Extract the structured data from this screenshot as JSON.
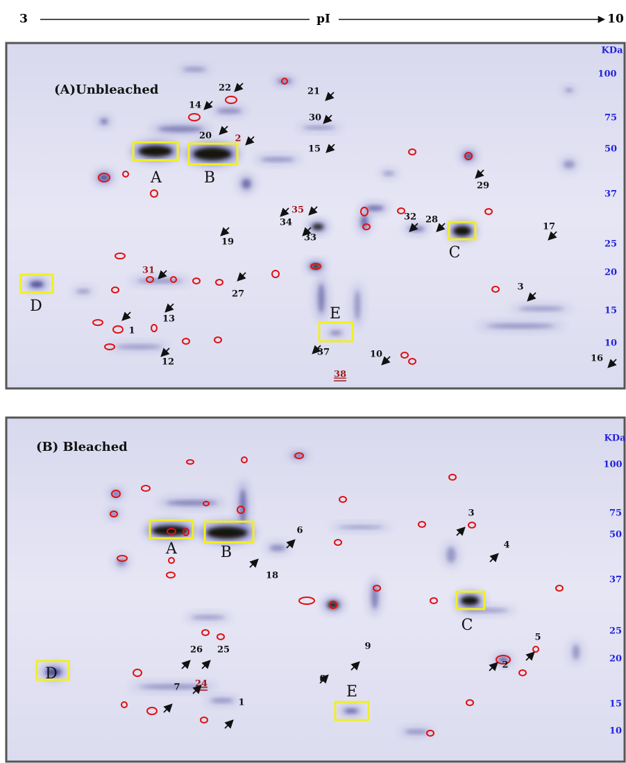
{
  "header": {
    "left": "3",
    "center": "pI",
    "right": "10"
  },
  "panels": [
    {
      "title": "(A)Unbleached",
      "mw_unit": "KDa",
      "mw_labels": [
        "100",
        "75",
        "50",
        "37",
        "25",
        "20",
        "15",
        "10"
      ],
      "box_labels": [
        "A",
        "B",
        "C",
        "D",
        "E"
      ],
      "spot_labels": [
        "22",
        "14",
        "21",
        "30",
        "20",
        "2",
        "15",
        "29",
        "35",
        "34",
        "32",
        "28",
        "17",
        "19",
        "33",
        "31",
        "27",
        "3",
        "13",
        "1",
        "12",
        "37",
        "10",
        "16",
        "38"
      ]
    },
    {
      "title": "(B) Bleached",
      "mw_unit": "KDa",
      "mw_labels": [
        "100",
        "75",
        "50",
        "37",
        "25",
        "20",
        "15",
        "10"
      ],
      "box_labels": [
        "A",
        "B",
        "C",
        "D",
        "E"
      ],
      "spot_labels": [
        "3",
        "6",
        "4",
        "18",
        "26",
        "25",
        "9",
        "2",
        "5",
        "8",
        "24",
        "7",
        "1"
      ]
    }
  ]
}
